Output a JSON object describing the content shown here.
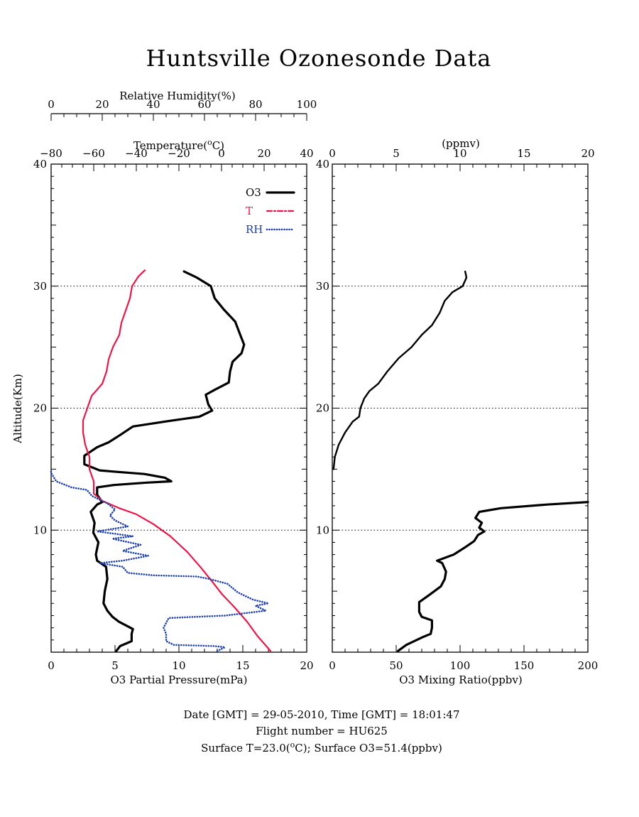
{
  "page": {
    "title": "Huntsville Ozonesonde Data",
    "footer": {
      "line1": "Date [GMT] = 29-05-2010,  Time [GMT] = 18:01:47",
      "line2": "Flight number = HU625",
      "line3": "Surface T=23.0(°C); Surface O3=51.4(ppbv)"
    }
  },
  "colors": {
    "o3": "#000000",
    "temperature": "#e8174a",
    "rh": "#1c3fa8"
  },
  "chart_data": [
    {
      "type": "line",
      "panel": "left",
      "ylabel": "Altitude(Km)",
      "ylim": [
        0,
        40
      ],
      "yticks": [
        "10",
        "20",
        "30",
        "40"
      ],
      "grid_y": [
        10,
        20,
        30
      ],
      "x_axes": {
        "bottom": {
          "label": "O3 Partial Pressure(mPa)",
          "range": [
            0,
            20
          ],
          "ticks": [
            "0",
            "5",
            "10",
            "15",
            "20"
          ]
        },
        "temperature": {
          "label": "Temperature(°C)",
          "range": [
            -80,
            40
          ],
          "ticks": [
            "-80",
            "-60",
            "-40",
            "-20",
            "0",
            "20",
            "40"
          ]
        },
        "humidity": {
          "label": "Relative Humidity(%)",
          "range": [
            0,
            100
          ],
          "ticks": [
            "0",
            "20",
            "40",
            "60",
            "80",
            "100"
          ]
        }
      },
      "legend_position": "top-right",
      "series": [
        {
          "name": "O3",
          "axis": "bottom",
          "style": "solid",
          "points": [
            [
              5.1,
              0.1
            ],
            [
              5.4,
              0.5
            ],
            [
              6.3,
              0.9
            ],
            [
              6.3,
              1.5
            ],
            [
              6.4,
              1.9
            ],
            [
              5.3,
              2.5
            ],
            [
              4.8,
              2.9
            ],
            [
              4.4,
              3.4
            ],
            [
              4.1,
              4.0
            ],
            [
              4.2,
              5.0
            ],
            [
              4.4,
              6.0
            ],
            [
              4.3,
              7.0
            ],
            [
              3.6,
              7.5
            ],
            [
              3.5,
              8.0
            ],
            [
              3.7,
              9.0
            ],
            [
              3.3,
              9.8
            ],
            [
              3.4,
              10.6
            ],
            [
              3.1,
              11.5
            ],
            [
              3.6,
              12.1
            ],
            [
              4.0,
              12.3
            ],
            [
              3.6,
              12.9
            ],
            [
              3.6,
              13.5
            ],
            [
              4.9,
              13.7
            ],
            [
              7.5,
              13.9
            ],
            [
              9.4,
              14.0
            ],
            [
              8.9,
              14.3
            ],
            [
              7.3,
              14.6
            ],
            [
              4.9,
              14.8
            ],
            [
              3.8,
              14.9
            ],
            [
              2.6,
              15.4
            ],
            [
              2.6,
              16.1
            ],
            [
              2.9,
              16.3
            ],
            [
              3.6,
              16.8
            ],
            [
              4.5,
              17.2
            ],
            [
              5.4,
              17.8
            ],
            [
              6.4,
              18.5
            ],
            [
              8.9,
              18.9
            ],
            [
              11.6,
              19.3
            ],
            [
              12.6,
              19.8
            ],
            [
              12.3,
              20.3
            ],
            [
              12.1,
              21.1
            ],
            [
              12.8,
              21.5
            ],
            [
              13.9,
              22.1
            ],
            [
              14.0,
              23.0
            ],
            [
              14.2,
              23.8
            ],
            [
              14.9,
              24.5
            ],
            [
              15.1,
              25.2
            ],
            [
              14.8,
              26.0
            ],
            [
              14.4,
              27.1
            ],
            [
              13.5,
              28.1
            ],
            [
              12.8,
              29.0
            ],
            [
              12.5,
              30.0
            ],
            [
              11.4,
              30.7
            ],
            [
              10.4,
              31.2
            ]
          ]
        },
        {
          "name": "T",
          "axis": "temperature",
          "style": "dash-dot",
          "points": [
            [
              23.0,
              0.1
            ],
            [
              21.0,
              0.5
            ],
            [
              17.0,
              1.3
            ],
            [
              12.0,
              2.5
            ],
            [
              6.0,
              3.7
            ],
            [
              0.0,
              4.8
            ],
            [
              -4.0,
              5.7
            ],
            [
              -10.0,
              7.0
            ],
            [
              -16.0,
              8.2
            ],
            [
              -24.0,
              9.5
            ],
            [
              -32.0,
              10.5
            ],
            [
              -40.0,
              11.3
            ],
            [
              -48.0,
              11.8
            ],
            [
              -56.0,
              12.4
            ],
            [
              -60.0,
              13.0
            ],
            [
              -60.0,
              14.0
            ],
            [
              -62.0,
              15.0
            ],
            [
              -62.0,
              16.0
            ],
            [
              -64.0,
              17.0
            ],
            [
              -65.0,
              18.0
            ],
            [
              -65.0,
              19.0
            ],
            [
              -63.0,
              20.0
            ],
            [
              -61.0,
              21.0
            ],
            [
              -56.0,
              22.0
            ],
            [
              -54.0,
              23.0
            ],
            [
              -53.0,
              24.0
            ],
            [
              -51.0,
              25.0
            ],
            [
              -48.0,
              26.0
            ],
            [
              -47.0,
              27.0
            ],
            [
              -45.0,
              28.0
            ],
            [
              -43.0,
              29.0
            ],
            [
              -42.0,
              30.0
            ],
            [
              -39.0,
              30.8
            ],
            [
              -36.0,
              31.3
            ]
          ]
        },
        {
          "name": "RH",
          "axis": "humidity",
          "style": "dotted",
          "points": [
            [
              65.0,
              0.1
            ],
            [
              68.0,
              0.4
            ],
            [
              64.0,
              0.5
            ],
            [
              48.0,
              0.6
            ],
            [
              45.0,
              0.9
            ],
            [
              45.0,
              1.5
            ],
            [
              44.0,
              2.0
            ],
            [
              46.0,
              2.8
            ],
            [
              68.0,
              3.0
            ],
            [
              84.0,
              3.4
            ],
            [
              80.0,
              3.8
            ],
            [
              85.0,
              4.0
            ],
            [
              79.0,
              4.3
            ],
            [
              73.0,
              4.9
            ],
            [
              69.0,
              5.6
            ],
            [
              62.0,
              6.0
            ],
            [
              57.0,
              6.2
            ],
            [
              40.0,
              6.3
            ],
            [
              30.0,
              6.5
            ],
            [
              28.0,
              7.0
            ],
            [
              19.0,
              7.3
            ],
            [
              28.0,
              7.5
            ],
            [
              38.0,
              7.9
            ],
            [
              28.0,
              8.3
            ],
            [
              35.0,
              8.8
            ],
            [
              24.0,
              9.3
            ],
            [
              32.0,
              9.5
            ],
            [
              18.0,
              9.9
            ],
            [
              30.0,
              10.3
            ],
            [
              25.0,
              10.8
            ],
            [
              23.0,
              11.2
            ],
            [
              25.0,
              11.7
            ],
            [
              22.0,
              12.2
            ],
            [
              16.0,
              12.8
            ],
            [
              14.0,
              13.3
            ],
            [
              8.0,
              13.5
            ],
            [
              2.0,
              14.0
            ],
            [
              0.0,
              14.7
            ],
            [
              0.0,
              15.0
            ]
          ]
        }
      ]
    },
    {
      "type": "line",
      "panel": "right",
      "ylim": [
        0,
        40
      ],
      "yticks": [
        "10",
        "20",
        "30",
        "40"
      ],
      "grid_y": [
        10,
        20,
        30
      ],
      "x_axes": {
        "bottom": {
          "label": "O3 Mixing Ratio(ppbv)",
          "range": [
            0,
            200
          ],
          "ticks": [
            "0",
            "50",
            "100",
            "150",
            "200"
          ]
        },
        "top": {
          "label": "(ppmv)",
          "range": [
            0,
            20
          ],
          "ticks": [
            "0",
            "5",
            "10",
            "15",
            "20"
          ]
        }
      },
      "series": [
        {
          "name": "O3 mixing ratio (ppbv)",
          "axis": "bottom",
          "style": "solid",
          "points": [
            [
              51.4,
              0.1
            ],
            [
              58.0,
              0.6
            ],
            [
              70.0,
              1.2
            ],
            [
              77.0,
              1.5
            ],
            [
              78.0,
              2.0
            ],
            [
              78.0,
              2.6
            ],
            [
              70.0,
              2.9
            ],
            [
              68.0,
              3.3
            ],
            [
              68.0,
              4.1
            ],
            [
              76.0,
              4.7
            ],
            [
              85.0,
              5.4
            ],
            [
              88.0,
              6.0
            ],
            [
              89.0,
              6.6
            ],
            [
              86.0,
              7.3
            ],
            [
              82.0,
              7.5
            ],
            [
              95.0,
              8.0
            ],
            [
              104.0,
              8.6
            ],
            [
              111.0,
              9.1
            ],
            [
              114.0,
              9.6
            ],
            [
              119.0,
              9.9
            ],
            [
              115.0,
              10.2
            ],
            [
              117.0,
              10.6
            ],
            [
              112.0,
              11.0
            ],
            [
              115.0,
              11.5
            ],
            [
              132.0,
              11.8
            ],
            [
              168.0,
              12.1
            ],
            [
              200.0,
              12.3
            ]
          ]
        },
        {
          "name": "O3 mixing ratio (ppmv)",
          "axis": "top",
          "style": "solid",
          "points": [
            [
              0.1,
              15.0
            ],
            [
              0.2,
              16.0
            ],
            [
              0.5,
              17.0
            ],
            [
              1.0,
              18.0
            ],
            [
              1.6,
              18.9
            ],
            [
              2.1,
              19.3
            ],
            [
              2.2,
              20.0
            ],
            [
              2.5,
              20.8
            ],
            [
              2.9,
              21.4
            ],
            [
              3.6,
              22.0
            ],
            [
              4.3,
              23.0
            ],
            [
              5.2,
              24.1
            ],
            [
              6.2,
              25.0
            ],
            [
              7.0,
              26.0
            ],
            [
              7.8,
              26.8
            ],
            [
              8.4,
              27.8
            ],
            [
              8.8,
              28.8
            ],
            [
              9.4,
              29.5
            ],
            [
              10.2,
              30.0
            ],
            [
              10.5,
              30.7
            ],
            [
              10.4,
              31.2
            ]
          ]
        }
      ]
    }
  ]
}
